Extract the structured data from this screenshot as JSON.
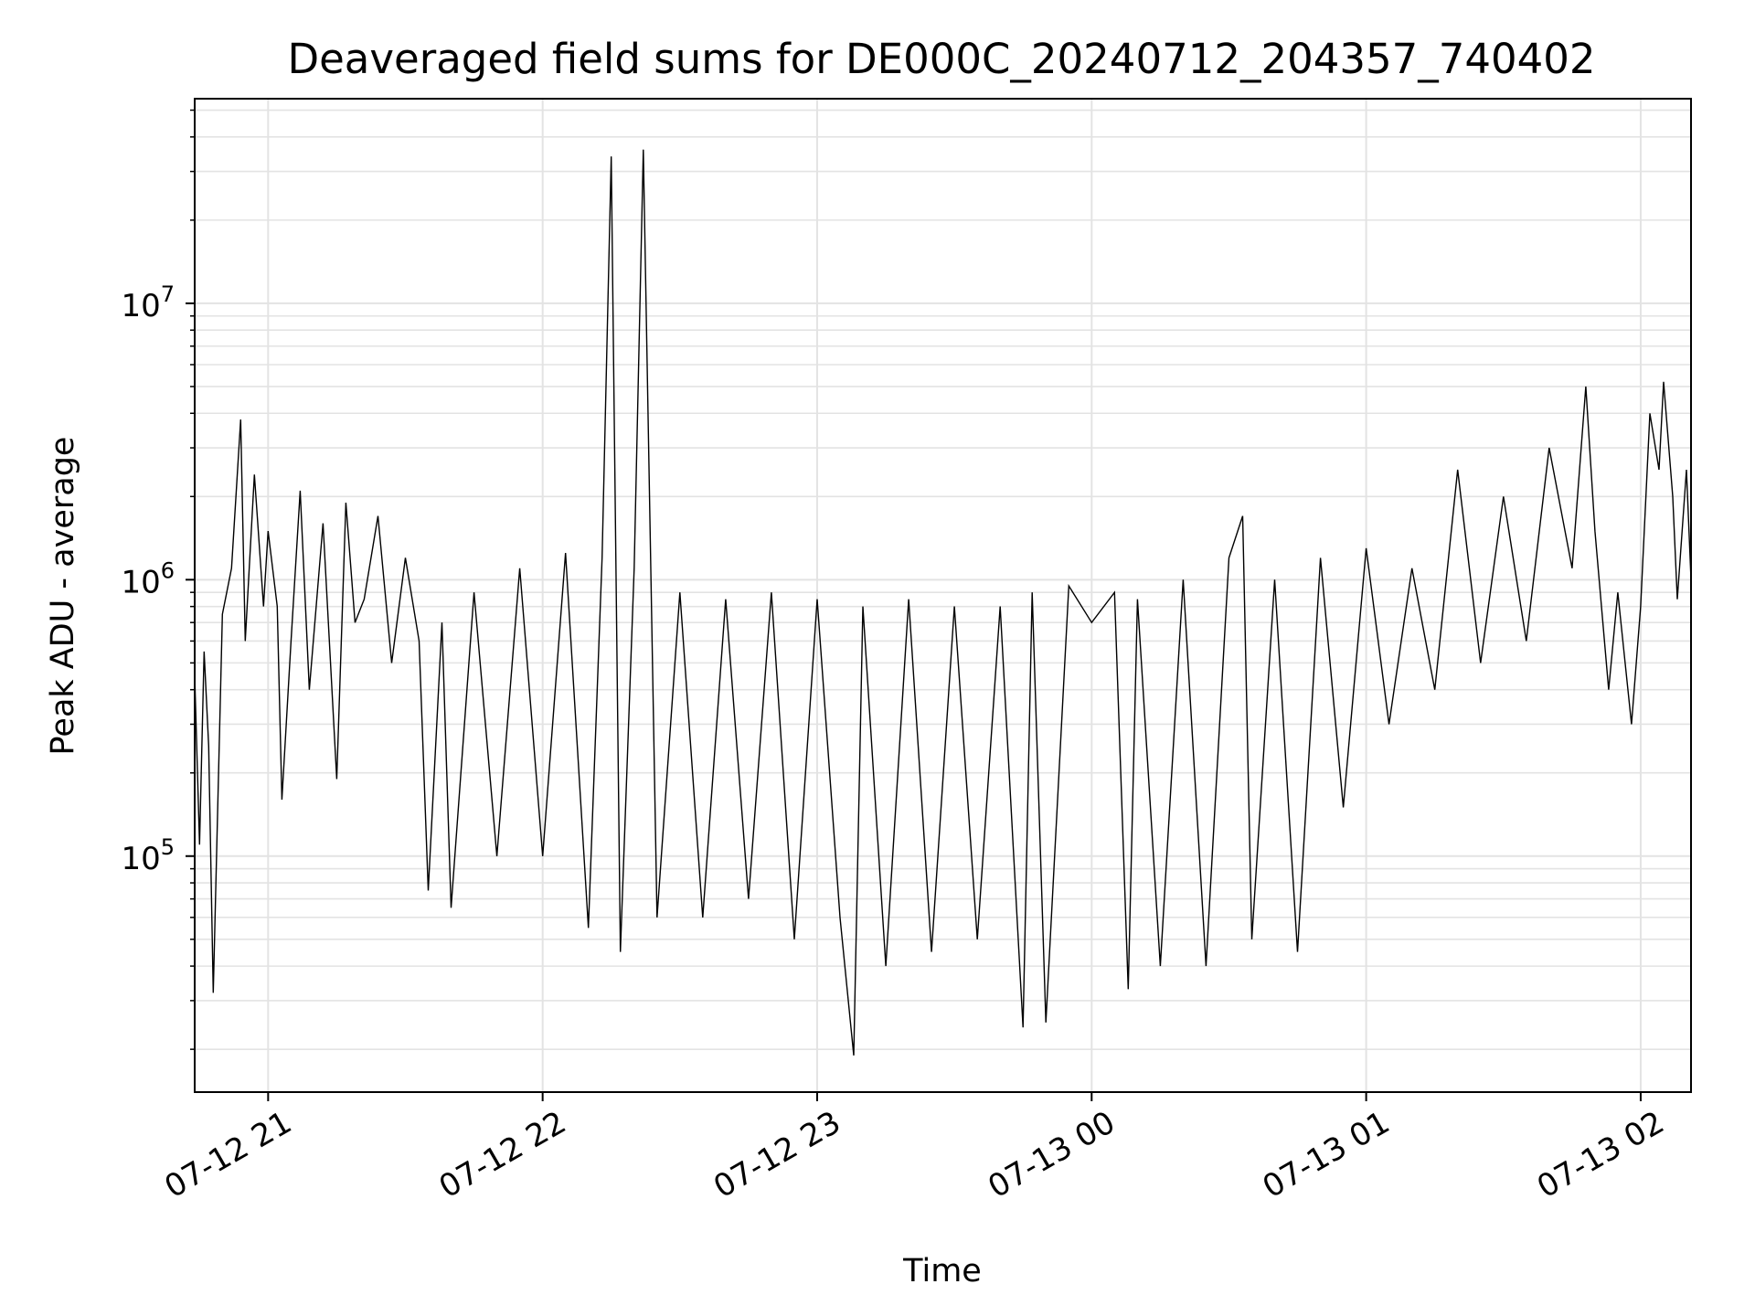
{
  "chart_data": {
    "type": "line",
    "title": "Deaveraged field sums for DE000C_20240712_204357_740402",
    "xlabel": "Time",
    "ylabel": "Peak ADU - average",
    "x_range": [
      "07-12 20:43:57",
      "07-13 02:11:00"
    ],
    "ylim": [
      14000,
      55000000
    ],
    "yscale": "log",
    "x_ticks": [
      {
        "label": "07-12 21",
        "hour": 21.0
      },
      {
        "label": "07-12 22",
        "hour": 22.0
      },
      {
        "label": "07-12 23",
        "hour": 23.0
      },
      {
        "label": "07-13 00",
        "hour": 24.0
      },
      {
        "label": "07-13 01",
        "hour": 25.0
      },
      {
        "label": "07-13 02",
        "hour": 26.0
      }
    ],
    "y_ticks": [
      {
        "base": "10",
        "exp": "5",
        "value": 100000
      },
      {
        "base": "10",
        "exp": "6",
        "value": 1000000
      },
      {
        "base": "10",
        "exp": "7",
        "value": 10000000
      }
    ],
    "grid": "major and minor",
    "line_color": "#000000",
    "series": [
      {
        "points": [
          [
            "07-12 20:43:57",
            450000
          ],
          [
            "07-12 20:45:00",
            110000
          ],
          [
            "07-12 20:46:00",
            550000
          ],
          [
            "07-12 20:47:00",
            250000
          ],
          [
            "07-12 20:48:00",
            32000
          ],
          [
            "07-12 20:50:00",
            750000
          ],
          [
            "07-12 20:52:00",
            1100000
          ],
          [
            "07-12 20:54:00",
            3800000
          ],
          [
            "07-12 20:55:00",
            600000
          ],
          [
            "07-12 20:57:00",
            2400000
          ],
          [
            "07-12 20:59:00",
            800000
          ],
          [
            "07-12 21:00:00",
            1500000
          ],
          [
            "07-12 21:02:00",
            800000
          ],
          [
            "07-12 21:03:00",
            160000
          ],
          [
            "07-12 21:05:00",
            600000
          ],
          [
            "07-12 21:07:00",
            2100000
          ],
          [
            "07-12 21:09:00",
            400000
          ],
          [
            "07-12 21:12:00",
            1600000
          ],
          [
            "07-12 21:15:00",
            190000
          ],
          [
            "07-12 21:17:00",
            1900000
          ],
          [
            "07-12 21:19:00",
            700000
          ],
          [
            "07-12 21:21:00",
            850000
          ],
          [
            "07-12 21:24:00",
            1700000
          ],
          [
            "07-12 21:27:00",
            500000
          ],
          [
            "07-12 21:30:00",
            1200000
          ],
          [
            "07-12 21:33:00",
            600000
          ],
          [
            "07-12 21:35:00",
            75000
          ],
          [
            "07-12 21:38:00",
            700000
          ],
          [
            "07-12 21:40:00",
            65000
          ],
          [
            "07-12 21:45:00",
            900000
          ],
          [
            "07-12 21:50:00",
            100000
          ],
          [
            "07-12 21:55:00",
            1100000
          ],
          [
            "07-12 22:00:00",
            100000
          ],
          [
            "07-12 22:05:00",
            1250000
          ],
          [
            "07-12 22:10:00",
            55000
          ],
          [
            "07-12 22:13:00",
            1200000
          ],
          [
            "07-12 22:15:00",
            34000000
          ],
          [
            "07-12 22:17:00",
            45000
          ],
          [
            "07-12 22:20:00",
            1100000
          ],
          [
            "07-12 22:22:00",
            36000000
          ],
          [
            "07-12 22:25:00",
            60000
          ],
          [
            "07-12 22:30:00",
            900000
          ],
          [
            "07-12 22:35:00",
            60000
          ],
          [
            "07-12 22:40:00",
            850000
          ],
          [
            "07-12 22:45:00",
            70000
          ],
          [
            "07-12 22:50:00",
            900000
          ],
          [
            "07-12 22:55:00",
            50000
          ],
          [
            "07-12 23:00:00",
            850000
          ],
          [
            "07-12 23:05:00",
            60000
          ],
          [
            "07-12 23:08:00",
            19000
          ],
          [
            "07-12 23:10:00",
            800000
          ],
          [
            "07-12 23:15:00",
            40000
          ],
          [
            "07-12 23:20:00",
            850000
          ],
          [
            "07-12 23:25:00",
            45000
          ],
          [
            "07-12 23:30:00",
            800000
          ],
          [
            "07-12 23:35:00",
            50000
          ],
          [
            "07-12 23:40:00",
            800000
          ],
          [
            "07-12 23:45:00",
            24000
          ],
          [
            "07-12 23:47:00",
            900000
          ],
          [
            "07-12 23:50:00",
            25000
          ],
          [
            "07-12 23:55:00",
            950000
          ],
          [
            "07-13 00:00:00",
            700000
          ],
          [
            "07-13 00:05:00",
            900000
          ],
          [
            "07-13 00:08:00",
            33000
          ],
          [
            "07-13 00:10:00",
            850000
          ],
          [
            "07-13 00:15:00",
            40000
          ],
          [
            "07-13 00:20:00",
            1000000
          ],
          [
            "07-13 00:25:00",
            40000
          ],
          [
            "07-13 00:30:00",
            1200000
          ],
          [
            "07-13 00:33:00",
            1700000
          ],
          [
            "07-13 00:35:00",
            50000
          ],
          [
            "07-13 00:40:00",
            1000000
          ],
          [
            "07-13 00:45:00",
            45000
          ],
          [
            "07-13 00:50:00",
            1200000
          ],
          [
            "07-13 00:55:00",
            150000
          ],
          [
            "07-13 01:00:00",
            1300000
          ],
          [
            "07-13 01:05:00",
            300000
          ],
          [
            "07-13 01:10:00",
            1100000
          ],
          [
            "07-13 01:15:00",
            400000
          ],
          [
            "07-13 01:20:00",
            2500000
          ],
          [
            "07-13 01:25:00",
            500000
          ],
          [
            "07-13 01:30:00",
            2000000
          ],
          [
            "07-13 01:35:00",
            600000
          ],
          [
            "07-13 01:40:00",
            3000000
          ],
          [
            "07-13 01:45:00",
            1100000
          ],
          [
            "07-13 01:48:00",
            5000000
          ],
          [
            "07-13 01:50:00",
            1500000
          ],
          [
            "07-13 01:53:00",
            400000
          ],
          [
            "07-13 01:55:00",
            900000
          ],
          [
            "07-13 01:58:00",
            300000
          ],
          [
            "07-13 02:00:00",
            800000
          ],
          [
            "07-13 02:02:00",
            4000000
          ],
          [
            "07-13 02:04:00",
            2500000
          ],
          [
            "07-13 02:05:00",
            5200000
          ],
          [
            "07-13 02:07:00",
            2000000
          ],
          [
            "07-13 02:08:00",
            850000
          ],
          [
            "07-13 02:10:00",
            2500000
          ],
          [
            "07-13 02:11:00",
            1000000
          ]
        ]
      }
    ]
  }
}
